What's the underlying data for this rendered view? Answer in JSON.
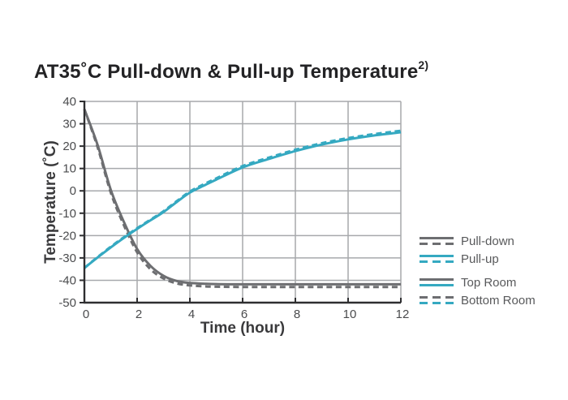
{
  "title": {
    "text": "AT35˚C Pull-down & Pull-up Temperature",
    "superscript": "2)"
  },
  "chart_data": {
    "type": "line",
    "title": "AT35˚C Pull-down & Pull-up Temperature 2)",
    "xlabel": "Time (hour)",
    "ylabel": "Temperature (˚C)",
    "xlim": [
      0,
      12
    ],
    "ylim": [
      -50,
      40
    ],
    "x_ticks": [
      0,
      2,
      4,
      6,
      8,
      10,
      12
    ],
    "y_ticks": [
      40,
      30,
      20,
      10,
      0,
      -10,
      -20,
      -30,
      -40,
      -50
    ],
    "grid": true,
    "legend_position": "right",
    "series": [
      {
        "name": "Pull-down Top Room",
        "color": "#6d6e71",
        "style": "solid",
        "points": [
          [
            0,
            36.5
          ],
          [
            0.5,
            20.5
          ],
          [
            1,
            0.5
          ],
          [
            1.5,
            -14
          ],
          [
            2,
            -26
          ],
          [
            2.5,
            -33.5
          ],
          [
            3,
            -38
          ],
          [
            3.5,
            -40.3
          ],
          [
            4,
            -41.2
          ],
          [
            4.5,
            -41.5
          ],
          [
            5,
            -41.7
          ],
          [
            6,
            -41.8
          ],
          [
            7,
            -41.8
          ],
          [
            8,
            -41.8
          ],
          [
            9,
            -41.8
          ],
          [
            10,
            -41.8
          ],
          [
            11,
            -41.8
          ],
          [
            12,
            -41.8
          ]
        ]
      },
      {
        "name": "Pull-down Bottom Room",
        "color": "#6d6e71",
        "style": "dashed",
        "points": [
          [
            0,
            36.5
          ],
          [
            0.5,
            19.5
          ],
          [
            1,
            -0.8
          ],
          [
            1.5,
            -15.5
          ],
          [
            2,
            -27.5
          ],
          [
            2.5,
            -35
          ],
          [
            3,
            -39.2
          ],
          [
            3.5,
            -41.4
          ],
          [
            4,
            -42.3
          ],
          [
            4.5,
            -42.7
          ],
          [
            5,
            -42.9
          ],
          [
            6,
            -43
          ],
          [
            7,
            -43
          ],
          [
            8,
            -43
          ],
          [
            9,
            -43
          ],
          [
            10,
            -43
          ],
          [
            11,
            -43
          ],
          [
            12,
            -43
          ]
        ]
      },
      {
        "name": "Pull-up Top Room",
        "color": "#35a9c1",
        "style": "solid",
        "points": [
          [
            0,
            -34.5
          ],
          [
            0.5,
            -29.8
          ],
          [
            1,
            -25.3
          ],
          [
            1.5,
            -21
          ],
          [
            2,
            -17
          ],
          [
            2.5,
            -13.2
          ],
          [
            3,
            -9.5
          ],
          [
            3.5,
            -5
          ],
          [
            4,
            -0.8
          ],
          [
            4.5,
            2.2
          ],
          [
            5,
            5
          ],
          [
            6,
            10.5
          ],
          [
            7,
            14.3
          ],
          [
            8,
            17.8
          ],
          [
            9,
            20.7
          ],
          [
            10,
            23
          ],
          [
            11,
            24.8
          ],
          [
            12,
            26.2
          ]
        ]
      },
      {
        "name": "Pull-up Bottom Room",
        "color": "#35a9c1",
        "style": "dashed",
        "points": [
          [
            0,
            -34.5
          ],
          [
            0.5,
            -29.6
          ],
          [
            1,
            -25
          ],
          [
            1.5,
            -20.7
          ],
          [
            2,
            -16.7
          ],
          [
            2.5,
            -12.9
          ],
          [
            3,
            -9.1
          ],
          [
            3.5,
            -4.6
          ],
          [
            4,
            -0.3
          ],
          [
            4.5,
            2.8
          ],
          [
            5,
            5.6
          ],
          [
            6,
            11.1
          ],
          [
            7,
            14.9
          ],
          [
            8,
            18.4
          ],
          [
            9,
            21.3
          ],
          [
            10,
            23.6
          ],
          [
            11,
            25.4
          ],
          [
            12,
            26.9
          ]
        ]
      }
    ]
  },
  "legend": {
    "items": [
      {
        "label": "Pull-down",
        "top": "solid-gray",
        "bottom": "dashed-gray"
      },
      {
        "label": "Pull-up",
        "top": "solid-teal",
        "bottom": "dashed-teal"
      },
      {
        "label": "Top Room",
        "top": "solid-gray",
        "bottom": "solid-teal"
      },
      {
        "label": "Bottom Room",
        "top": "dashed-gray",
        "bottom": "dashed-teal"
      }
    ]
  },
  "colors": {
    "pull_down_gray": "#6d6e71",
    "pull_up_teal": "#35a9c1",
    "gridline": "#a7a9ac",
    "axis_dark": "#2e2e30",
    "title_text": "#232325",
    "axis_title_text": "#3a3a3c",
    "tick_text": "#4a4b4d",
    "legend_text": "#58595b",
    "background": "#ffffff"
  }
}
